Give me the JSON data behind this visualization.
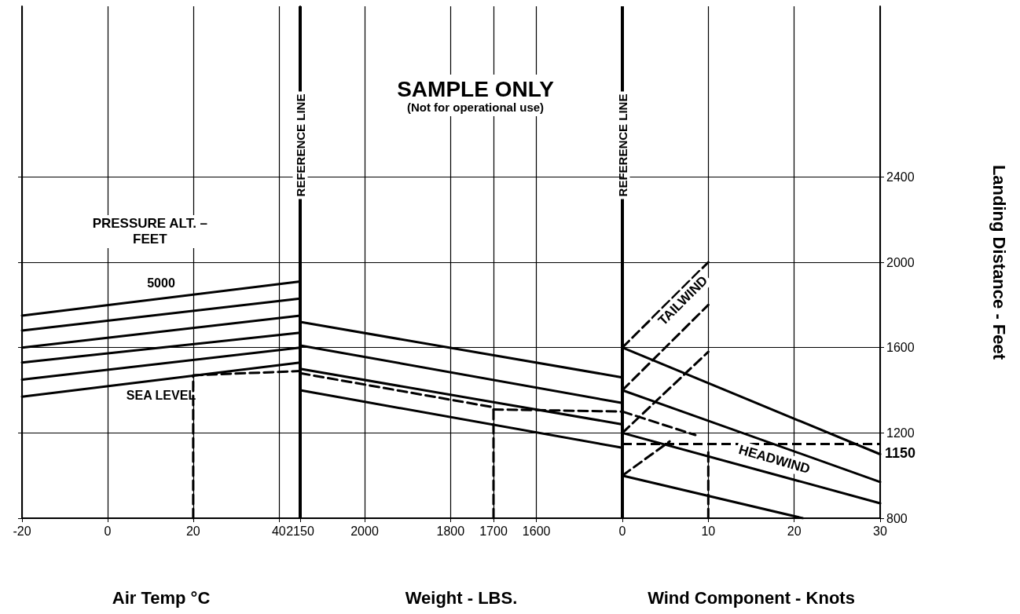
{
  "chart_data": [
    {
      "type": "line",
      "xlabel": "Air Temp °C",
      "xlim": [
        -20,
        45
      ],
      "xticks": [
        -20,
        0,
        20,
        40
      ],
      "ylim": [
        800,
        3200
      ],
      "yticks": [
        800,
        1200,
        1600,
        2000,
        2400
      ],
      "tick_labels": "x",
      "grid": true,
      "annotations": [
        "PRESSURE ALT. –\nFEET"
      ],
      "ref_lines": [
        {
          "axis": "x",
          "value": 45,
          "label": "REFERENCE LINE"
        }
      ],
      "series": [
        {
          "name": "5000",
          "color": "#000000",
          "x": [
            -20,
            45
          ],
          "values": [
            1750,
            1910
          ]
        },
        {
          "color": "#000000",
          "x": [
            -20,
            45
          ],
          "values": [
            1680,
            1830
          ]
        },
        {
          "color": "#000000",
          "x": [
            -20,
            45
          ],
          "values": [
            1600,
            1750
          ]
        },
        {
          "color": "#000000",
          "x": [
            -20,
            45
          ],
          "values": [
            1530,
            1670
          ]
        },
        {
          "color": "#000000",
          "x": [
            -20,
            45
          ],
          "values": [
            1450,
            1600
          ]
        },
        {
          "name": "SEA LEVEL",
          "color": "#000000",
          "x": [
            -20,
            45
          ],
          "values": [
            1370,
            1530
          ]
        },
        {
          "color": "#000000",
          "line_style": "dashed",
          "x": [
            20,
            20
          ],
          "values": [
            800,
            1465
          ]
        },
        {
          "color": "#000000",
          "line_style": "dashed",
          "x": [
            20,
            45
          ],
          "values": [
            1470,
            1490
          ]
        }
      ]
    },
    {
      "type": "line",
      "title": "SAMPLE ONLY",
      "subtitle": "(Not for operational use)",
      "xlabel": "Weight - LBS.",
      "xlim": [
        2150,
        1400
      ],
      "xticks": [
        2150,
        2000,
        1800,
        1700,
        1600
      ],
      "ylim": [
        800,
        3200
      ],
      "yticks": [
        800,
        1200,
        1600,
        2000,
        2400
      ],
      "tick_labels": "x",
      "grid": true,
      "series": [
        {
          "color": "#000000",
          "x": [
            2150,
            1400
          ],
          "values": [
            1720,
            1460
          ]
        },
        {
          "color": "#000000",
          "x": [
            2150,
            1400
          ],
          "values": [
            1610,
            1340
          ]
        },
        {
          "color": "#000000",
          "x": [
            2150,
            1400
          ],
          "values": [
            1500,
            1240
          ]
        },
        {
          "color": "#000000",
          "x": [
            2150,
            1400
          ],
          "values": [
            1400,
            1130
          ]
        },
        {
          "color": "#000000",
          "line_style": "dashed",
          "x": [
            2150,
            1700
          ],
          "values": [
            1480,
            1320
          ]
        },
        {
          "color": "#000000",
          "line_style": "dashed",
          "x": [
            1700,
            1400
          ],
          "values": [
            1310,
            1300
          ]
        },
        {
          "color": "#000000",
          "line_style": "dashed",
          "x": [
            1700,
            1700
          ],
          "values": [
            800,
            1310
          ]
        }
      ]
    },
    {
      "type": "line",
      "xlabel": "Wind Component - Knots",
      "y2label": "Landing Distance - Feet",
      "xlim": [
        0,
        30
      ],
      "xticks": [
        0,
        10,
        20,
        30
      ],
      "y2lim": [
        800,
        3200
      ],
      "y2ticks": [
        800,
        1200,
        1600,
        2000,
        2400
      ],
      "grid": true,
      "annotations": [
        "TAILWIND",
        "HEADWIND"
      ],
      "ref_lines": [
        {
          "axis": "x",
          "value": 0,
          "label": "REFERENCE LINE"
        },
        {
          "axis": "y2",
          "value": 1150,
          "label": "1150",
          "line_style": "dashed"
        }
      ],
      "series": [
        {
          "color": "#000000",
          "axis": "y2",
          "x": [
            0,
            30
          ],
          "values": [
            1600,
            1100
          ]
        },
        {
          "color": "#000000",
          "axis": "y2",
          "x": [
            0,
            30
          ],
          "values": [
            1400,
            970
          ]
        },
        {
          "color": "#000000",
          "axis": "y2",
          "x": [
            0,
            30
          ],
          "values": [
            1200,
            870
          ]
        },
        {
          "color": "#000000",
          "axis": "y2",
          "x": [
            0,
            21
          ],
          "values": [
            1000,
            800
          ]
        },
        {
          "color": "#000000",
          "axis": "y2",
          "line_style": "dashed",
          "x": [
            0,
            10
          ],
          "values": [
            1600,
            2000
          ]
        },
        {
          "color": "#000000",
          "axis": "y2",
          "line_style": "dashed",
          "x": [
            0,
            10
          ],
          "values": [
            1400,
            1800
          ]
        },
        {
          "color": "#000000",
          "axis": "y2",
          "line_style": "dashed",
          "x": [
            0,
            10
          ],
          "values": [
            1200,
            1580
          ]
        },
        {
          "color": "#000000",
          "axis": "y2",
          "line_style": "dashed",
          "x": [
            0,
            5.5
          ],
          "values": [
            1000,
            1160
          ]
        },
        {
          "color": "#000000",
          "axis": "y2",
          "line_style": "dashed",
          "x": [
            0,
            8.5
          ],
          "values": [
            1300,
            1190
          ]
        },
        {
          "color": "#000000",
          "axis": "y2",
          "line_style": "dashed",
          "x": [
            10,
            10
          ],
          "values": [
            800,
            1110
          ]
        }
      ]
    }
  ]
}
